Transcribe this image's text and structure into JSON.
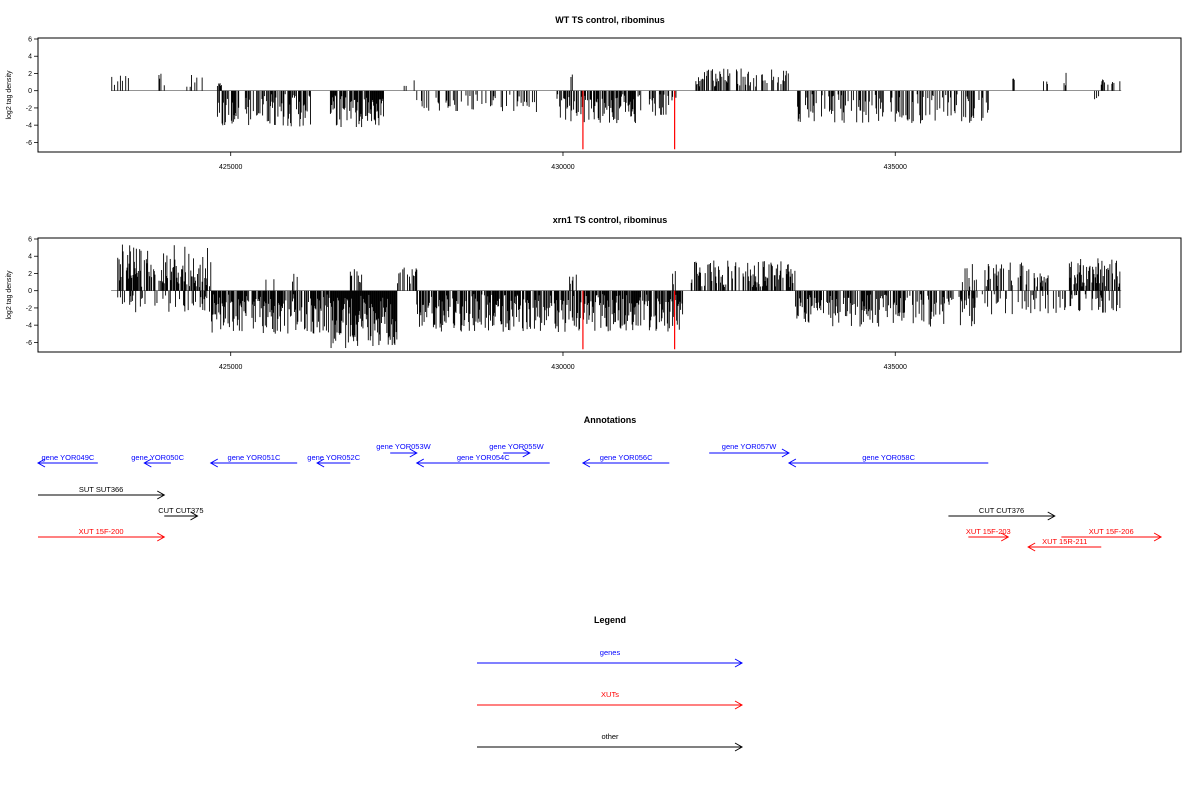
{
  "chart_data": [
    {
      "type": "bar",
      "title": "WT TS control, ribominus",
      "xlabel": "",
      "ylabel": "log2 tag density",
      "xlim": [
        422100,
        439300
      ],
      "ylim": [
        -7,
        6
      ],
      "yticks": [
        "6",
        "4",
        "2",
        "0",
        "-2",
        "-4",
        "-6"
      ],
      "xticks": [
        "425000",
        "430000",
        "435000"
      ],
      "highlight_positions": [
        430300,
        431680
      ],
      "highlight_color": "#ff0000",
      "highlight_depth": -6.8,
      "regions": [
        {
          "start": 423200,
          "end": 423500,
          "density": 0.25,
          "sign": 1,
          "max": 2.0
        },
        {
          "start": 423900,
          "end": 424000,
          "density": 0.3,
          "sign": 1,
          "max": 2.0
        },
        {
          "start": 424300,
          "end": 424600,
          "density": 0.25,
          "sign": 1,
          "max": 2.2
        },
        {
          "start": 424800,
          "end": 424900,
          "density": 0.3,
          "sign": 1,
          "max": 1.0
        },
        {
          "start": 424800,
          "end": 426200,
          "density": 0.6,
          "sign": -1,
          "max": 4.2
        },
        {
          "start": 426500,
          "end": 427300,
          "density": 0.85,
          "sign": -1,
          "max": 4.3
        },
        {
          "start": 427600,
          "end": 427800,
          "density": 0.2,
          "sign": 1,
          "max": 2.2
        },
        {
          "start": 427800,
          "end": 429600,
          "density": 0.25,
          "sign": -1,
          "max": 2.5
        },
        {
          "start": 429900,
          "end": 431200,
          "density": 0.55,
          "sign": -1,
          "max": 3.8
        },
        {
          "start": 431300,
          "end": 431700,
          "density": 0.5,
          "sign": -1,
          "max": 3.2
        },
        {
          "start": 430100,
          "end": 430200,
          "density": 0.3,
          "sign": 1,
          "max": 2.0
        },
        {
          "start": 432000,
          "end": 433400,
          "density": 0.35,
          "sign": 1,
          "max": 2.7
        },
        {
          "start": 433500,
          "end": 436400,
          "density": 0.4,
          "sign": -1,
          "max": 3.8
        },
        {
          "start": 436700,
          "end": 436800,
          "density": 0.3,
          "sign": 1,
          "max": 1.9
        },
        {
          "start": 437200,
          "end": 437300,
          "density": 0.3,
          "sign": 1,
          "max": 1.1
        },
        {
          "start": 437500,
          "end": 437600,
          "density": 0.3,
          "sign": 1,
          "max": 3.4
        },
        {
          "start": 438000,
          "end": 438100,
          "density": 0.3,
          "sign": -1,
          "max": 1.6
        },
        {
          "start": 438100,
          "end": 438400,
          "density": 0.3,
          "sign": 1,
          "max": 1.5
        }
      ]
    },
    {
      "type": "bar",
      "title": "xrn1 TS control, ribominus",
      "xlabel": "",
      "ylabel": "log2 tag density",
      "xlim": [
        422100,
        439300
      ],
      "ylim": [
        -7,
        6
      ],
      "yticks": [
        "6",
        "4",
        "2",
        "0",
        "-2",
        "-4",
        "-6"
      ],
      "xticks": [
        "425000",
        "430000",
        "435000"
      ],
      "highlight_positions": [
        430300,
        431680
      ],
      "highlight_color": "#ff0000",
      "highlight_depth": -6.8,
      "regions": [
        {
          "start": 423300,
          "end": 424700,
          "density": 0.6,
          "sign": 1,
          "max": 5.4
        },
        {
          "start": 423300,
          "end": 424700,
          "density": 0.3,
          "sign": -1,
          "max": 2.5
        },
        {
          "start": 424700,
          "end": 426500,
          "density": 0.75,
          "sign": -1,
          "max": 5.0
        },
        {
          "start": 425500,
          "end": 426000,
          "density": 0.2,
          "sign": 1,
          "max": 2.0
        },
        {
          "start": 426500,
          "end": 427500,
          "density": 1.0,
          "sign": -1,
          "max": 6.7
        },
        {
          "start": 426800,
          "end": 427000,
          "density": 0.3,
          "sign": 1,
          "max": 2.7
        },
        {
          "start": 427500,
          "end": 427800,
          "density": 0.4,
          "sign": 1,
          "max": 3.0
        },
        {
          "start": 427800,
          "end": 431800,
          "density": 0.7,
          "sign": -1,
          "max": 4.8
        },
        {
          "start": 430100,
          "end": 430200,
          "density": 0.3,
          "sign": 1,
          "max": 2.0
        },
        {
          "start": 431600,
          "end": 431700,
          "density": 0.3,
          "sign": 1,
          "max": 2.5
        },
        {
          "start": 431900,
          "end": 433500,
          "density": 0.6,
          "sign": 1,
          "max": 3.5
        },
        {
          "start": 433500,
          "end": 436200,
          "density": 0.6,
          "sign": -1,
          "max": 4.2
        },
        {
          "start": 436000,
          "end": 437300,
          "density": 0.35,
          "sign": 1,
          "max": 3.3
        },
        {
          "start": 436200,
          "end": 437600,
          "density": 0.3,
          "sign": -1,
          "max": 2.8
        },
        {
          "start": 437600,
          "end": 438400,
          "density": 0.6,
          "sign": 1,
          "max": 3.8
        },
        {
          "start": 437600,
          "end": 438400,
          "density": 0.3,
          "sign": -1,
          "max": 2.7
        }
      ]
    }
  ],
  "annotations": {
    "title": "Annotations",
    "features": [
      {
        "label": "gene YOR049C",
        "start": 422100,
        "end": 423000,
        "dir": "-",
        "row": 1,
        "color": "#0000ff"
      },
      {
        "label": "gene YOR050C",
        "start": 423700,
        "end": 424100,
        "dir": "-",
        "row": 1,
        "color": "#0000ff"
      },
      {
        "label": "gene YOR051C",
        "start": 424700,
        "end": 426000,
        "dir": "-",
        "row": 1,
        "color": "#0000ff"
      },
      {
        "label": "gene YOR052C",
        "start": 426300,
        "end": 426800,
        "dir": "-",
        "row": 1,
        "color": "#0000ff"
      },
      {
        "label": "gene YOR053W",
        "start": 427400,
        "end": 427800,
        "dir": "+",
        "row": 0,
        "color": "#0000ff"
      },
      {
        "label": "gene YOR054C",
        "start": 427800,
        "end": 429800,
        "dir": "-",
        "row": 1,
        "color": "#0000ff"
      },
      {
        "label": "gene YOR055W",
        "start": 429100,
        "end": 429500,
        "dir": "+",
        "row": 0,
        "color": "#0000ff"
      },
      {
        "label": "gene YOR056C",
        "start": 430300,
        "end": 431600,
        "dir": "-",
        "row": 1,
        "color": "#0000ff"
      },
      {
        "label": "gene YOR057W",
        "start": 432200,
        "end": 433400,
        "dir": "+",
        "row": 0,
        "color": "#0000ff"
      },
      {
        "label": "gene YOR058C",
        "start": 433400,
        "end": 436400,
        "dir": "-",
        "row": 1,
        "color": "#0000ff"
      },
      {
        "label": "SUT SUT366",
        "start": 422100,
        "end": 424000,
        "dir": "+",
        "row": 2,
        "color": "#000000"
      },
      {
        "label": "CUT CUT375",
        "start": 424000,
        "end": 424500,
        "dir": "+",
        "row": 3,
        "color": "#000000"
      },
      {
        "label": "CUT CUT376",
        "start": 435800,
        "end": 437400,
        "dir": "+",
        "row": 3,
        "color": "#000000"
      },
      {
        "label": "XUT 15F-200",
        "start": 422100,
        "end": 424000,
        "dir": "+",
        "row": 4,
        "color": "#ff0000"
      },
      {
        "label": "XUT 15F-203",
        "start": 436100,
        "end": 436700,
        "dir": "+",
        "row": 4,
        "color": "#ff0000"
      },
      {
        "label": "XUT 15F-206",
        "start": 437500,
        "end": 439000,
        "dir": "+",
        "row": 4,
        "color": "#ff0000"
      },
      {
        "label": "XUT 15R-211",
        "start": 437000,
        "end": 438100,
        "dir": "-",
        "row": 5,
        "color": "#ff0000"
      }
    ]
  },
  "legend": {
    "title": "Legend",
    "items": [
      {
        "label": "genes",
        "color": "#0000ff"
      },
      {
        "label": "XUTs",
        "color": "#ff0000"
      },
      {
        "label": "other",
        "color": "#000000"
      }
    ]
  }
}
